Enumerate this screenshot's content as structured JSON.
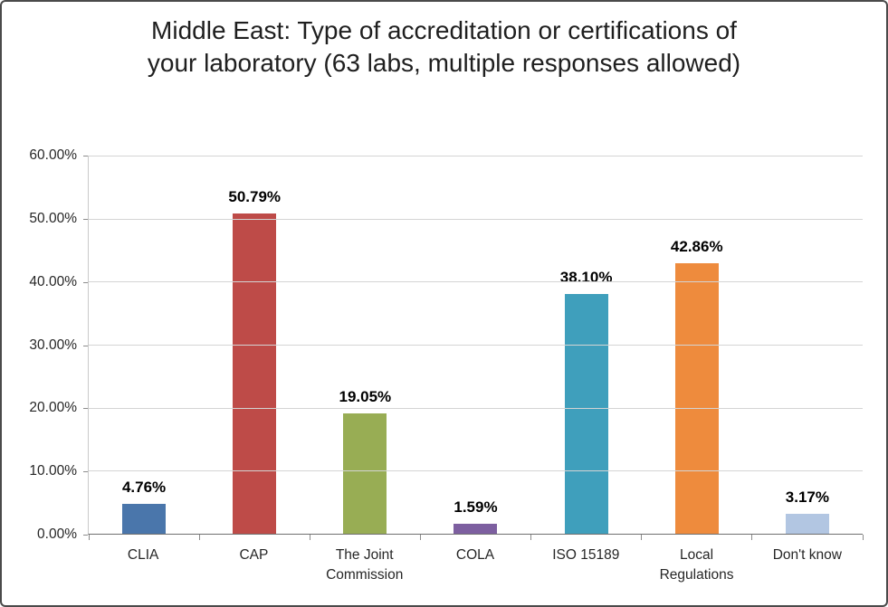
{
  "chart_data": {
    "type": "bar",
    "title": "Middle East: Type of accreditation or certifications of your laboratory (63 labs, multiple responses allowed)",
    "categories": [
      "CLIA",
      "CAP",
      "The Joint Commission",
      "COLA",
      "ISO 15189",
      "Local Regulations",
      "Don't know"
    ],
    "values": [
      4.76,
      50.79,
      19.05,
      1.59,
      38.1,
      42.86,
      3.17
    ],
    "value_labels": [
      "4.76%",
      "50.79%",
      "19.05%",
      "1.59%",
      "38.10%",
      "42.86%",
      "3.17%"
    ],
    "bar_colors": [
      "#4a76ab",
      "#be4b48",
      "#98ad54",
      "#7d5fa0",
      "#3f9fbc",
      "#ee8b3d",
      "#b2c6e2"
    ],
    "ylim": [
      0,
      60
    ],
    "ytick_step": 10,
    "yticks": [
      "0.00%",
      "10.00%",
      "20.00%",
      "30.00%",
      "40.00%",
      "50.00%",
      "60.00%"
    ],
    "grid": true,
    "legend": "none",
    "xlabel": "",
    "ylabel": ""
  }
}
